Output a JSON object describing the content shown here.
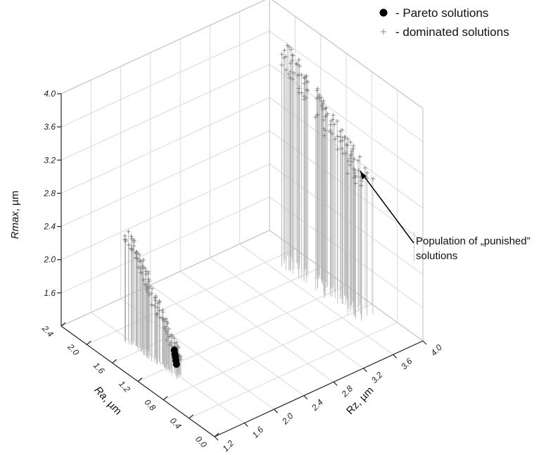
{
  "chart_data": {
    "type": "scatter",
    "projection": "3d",
    "axes": {
      "x": {
        "label": "Ra",
        "unit": ", µm",
        "ticks": [
          "0.0",
          "0.4",
          "0.8",
          "1.2",
          "1.6",
          "2.0",
          "2.4"
        ],
        "range": [
          0.0,
          2.4
        ]
      },
      "y": {
        "label": "Rz",
        "unit": ", µm",
        "ticks": [
          "1.2",
          "1.6",
          "2.0",
          "2.4",
          "2.8",
          "3.2",
          "3.6",
          "4.0"
        ],
        "range": [
          1.2,
          4.0
        ]
      },
      "z": {
        "label": "Rmax",
        "unit": ", µm",
        "ticks": [
          "1.6",
          "2.0",
          "2.4",
          "2.8",
          "3.2",
          "3.6",
          "4.0"
        ],
        "range": [
          1.2,
          4.0
        ]
      }
    },
    "grid": true,
    "legend_position": "top-right",
    "series": [
      {
        "name": "- Pareto solutions",
        "marker": "filled-circle",
        "color": "#000000",
        "points": [
          [
            0.62,
            1.22,
            1.72
          ],
          [
            0.64,
            1.23,
            1.75
          ],
          [
            0.66,
            1.24,
            1.78
          ],
          [
            0.68,
            1.25,
            1.8
          ],
          [
            0.7,
            1.26,
            1.83
          ]
        ]
      },
      {
        "name": "- dominated solutions",
        "marker": "plus",
        "color": "#8a8a8a",
        "clusters": [
          {
            "ra": [
              0.62,
              1.45
            ],
            "rz": [
              1.22,
              1.32
            ],
            "rmax": [
              1.72,
              2.82
            ],
            "count": 110
          },
          {
            "ra": [
              0.55,
              1.85
            ],
            "rz": [
              3.6,
              3.82
            ],
            "rmax": [
              2.9,
              3.8
            ],
            "count": 120
          }
        ]
      }
    ],
    "annotations": [
      {
        "lines": [
          "Population of „punished”",
          "solutions"
        ],
        "target": [
          1.2,
          3.72,
          3.35
        ]
      }
    ]
  }
}
